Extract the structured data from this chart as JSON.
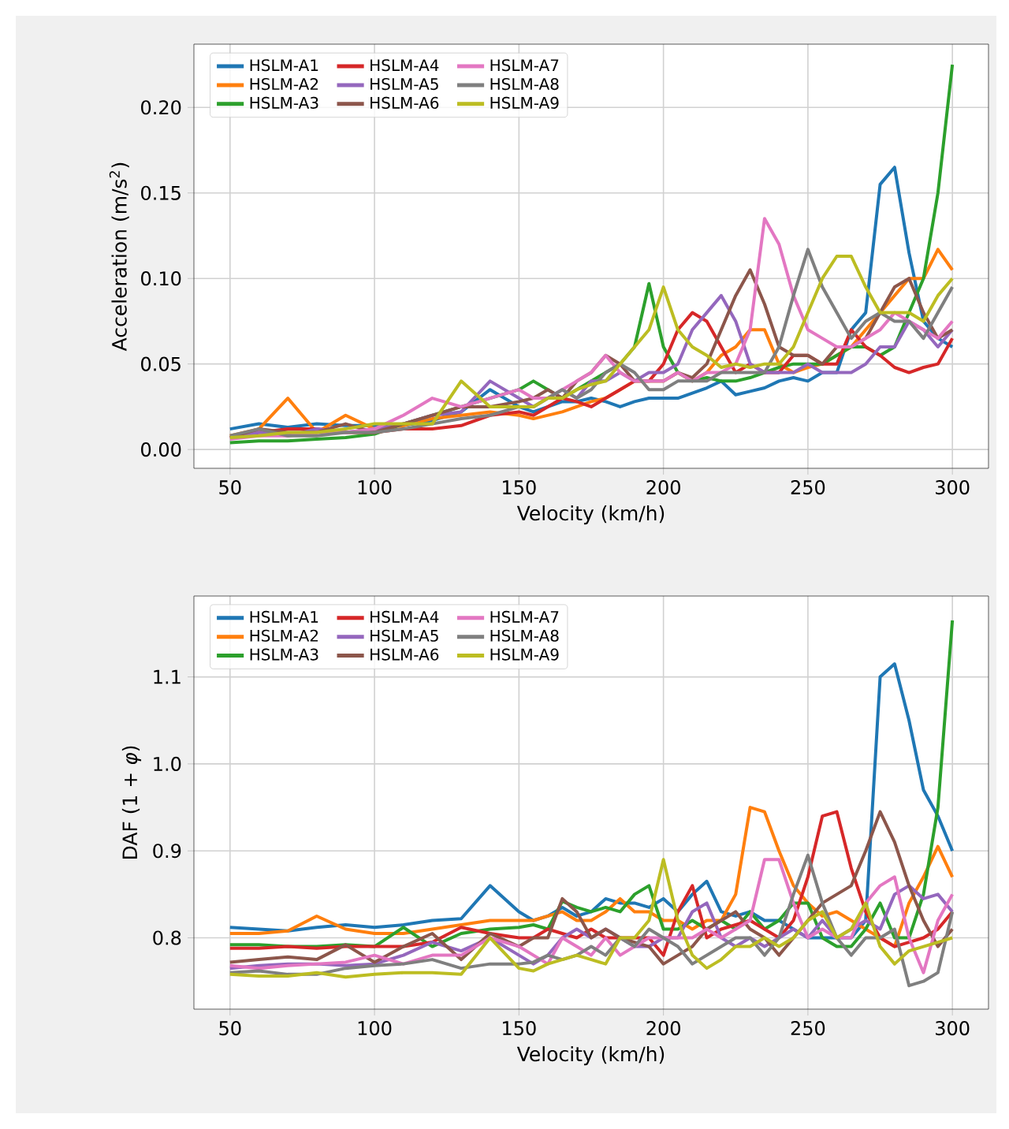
{
  "chart_data": [
    {
      "type": "line",
      "xlabel": "Velocity (km/h)",
      "ylabel": "Acceleration (m/s$^{2}$)",
      "x": [
        50,
        60,
        70,
        80,
        90,
        100,
        110,
        120,
        130,
        140,
        150,
        155,
        160,
        165,
        170,
        175,
        180,
        185,
        190,
        195,
        200,
        205,
        210,
        215,
        220,
        225,
        230,
        235,
        240,
        245,
        250,
        255,
        260,
        265,
        270,
        275,
        280,
        285,
        290,
        295,
        300
      ],
      "xlim": [
        37.5,
        312.5
      ],
      "ylim": [
        -0.011,
        0.237
      ],
      "xticks": [
        50,
        100,
        150,
        200,
        250,
        300
      ],
      "yticks": [
        {
          "value": 0,
          "label": "0.00"
        },
        {
          "value": 0.05,
          "label": "0.05"
        },
        {
          "value": 0.1,
          "label": "0.10"
        },
        {
          "value": 0.15,
          "label": "0.15"
        },
        {
          "value": 0.2,
          "label": "0.20"
        }
      ],
      "grid": true,
      "legend": "top left",
      "marker": "none",
      "line_style": "solid",
      "series": [
        {
          "name": "HSLM-A1",
          "color": "#1f77b4",
          "values": [
            0.012,
            0.015,
            0.013,
            0.015,
            0.014,
            0.014,
            0.014,
            0.017,
            0.022,
            0.035,
            0.025,
            0.022,
            0.025,
            0.028,
            0.028,
            0.03,
            0.028,
            0.025,
            0.028,
            0.03,
            0.03,
            0.03,
            0.033,
            0.036,
            0.04,
            0.032,
            0.034,
            0.036,
            0.04,
            0.042,
            0.04,
            0.045,
            0.045,
            0.07,
            0.08,
            0.155,
            0.165,
            0.115,
            0.075,
            0.065,
            0.06
          ]
        },
        {
          "name": "HSLM-A2",
          "color": "#ff7f0e",
          "values": [
            0.008,
            0.012,
            0.03,
            0.01,
            0.02,
            0.012,
            0.014,
            0.018,
            0.02,
            0.022,
            0.02,
            0.018,
            0.02,
            0.022,
            0.025,
            0.028,
            0.03,
            0.035,
            0.04,
            0.04,
            0.04,
            0.045,
            0.04,
            0.045,
            0.055,
            0.06,
            0.07,
            0.07,
            0.05,
            0.045,
            0.048,
            0.05,
            0.055,
            0.06,
            0.07,
            0.08,
            0.09,
            0.1,
            0.1,
            0.117,
            0.105
          ]
        },
        {
          "name": "HSLM-A3",
          "color": "#2ca02c",
          "values": [
            0.004,
            0.005,
            0.005,
            0.006,
            0.007,
            0.009,
            0.015,
            0.02,
            0.025,
            0.03,
            0.035,
            0.04,
            0.035,
            0.03,
            0.035,
            0.04,
            0.045,
            0.05,
            0.06,
            0.097,
            0.06,
            0.045,
            0.04,
            0.042,
            0.04,
            0.04,
            0.042,
            0.045,
            0.048,
            0.05,
            0.05,
            0.05,
            0.055,
            0.06,
            0.06,
            0.055,
            0.06,
            0.08,
            0.1,
            0.15,
            0.225
          ]
        },
        {
          "name": "HSLM-A4",
          "color": "#d62728",
          "values": [
            0.007,
            0.01,
            0.012,
            0.012,
            0.01,
            0.01,
            0.012,
            0.012,
            0.014,
            0.02,
            0.022,
            0.02,
            0.025,
            0.03,
            0.028,
            0.025,
            0.03,
            0.035,
            0.04,
            0.04,
            0.05,
            0.07,
            0.08,
            0.075,
            0.06,
            0.045,
            0.05,
            0.045,
            0.045,
            0.055,
            0.055,
            0.05,
            0.05,
            0.07,
            0.06,
            0.055,
            0.048,
            0.045,
            0.048,
            0.05,
            0.065
          ]
        },
        {
          "name": "HSLM-A5",
          "color": "#9467bd",
          "values": [
            0.007,
            0.01,
            0.008,
            0.012,
            0.01,
            0.012,
            0.015,
            0.02,
            0.022,
            0.04,
            0.03,
            0.025,
            0.03,
            0.035,
            0.03,
            0.04,
            0.04,
            0.045,
            0.04,
            0.045,
            0.045,
            0.05,
            0.07,
            0.08,
            0.09,
            0.075,
            0.05,
            0.045,
            0.045,
            0.045,
            0.05,
            0.045,
            0.045,
            0.045,
            0.05,
            0.06,
            0.06,
            0.075,
            0.07,
            0.06,
            0.07
          ]
        },
        {
          "name": "HSLM-A6",
          "color": "#8c564b",
          "values": [
            0.007,
            0.012,
            0.01,
            0.01,
            0.015,
            0.01,
            0.015,
            0.02,
            0.025,
            0.025,
            0.028,
            0.03,
            0.035,
            0.03,
            0.04,
            0.045,
            0.055,
            0.05,
            0.04,
            0.04,
            0.04,
            0.045,
            0.042,
            0.05,
            0.07,
            0.09,
            0.105,
            0.085,
            0.06,
            0.055,
            0.055,
            0.05,
            0.06,
            0.06,
            0.065,
            0.08,
            0.095,
            0.1,
            0.08,
            0.065,
            0.07
          ]
        },
        {
          "name": "HSLM-A7",
          "color": "#e377c2",
          "values": [
            0.006,
            0.008,
            0.008,
            0.01,
            0.01,
            0.012,
            0.02,
            0.03,
            0.025,
            0.03,
            0.035,
            0.03,
            0.03,
            0.035,
            0.04,
            0.045,
            0.055,
            0.045,
            0.04,
            0.04,
            0.04,
            0.045,
            0.04,
            0.045,
            0.045,
            0.05,
            0.07,
            0.135,
            0.12,
            0.09,
            0.07,
            0.065,
            0.06,
            0.06,
            0.065,
            0.07,
            0.08,
            0.075,
            0.07,
            0.065,
            0.075
          ]
        },
        {
          "name": "HSLM-A8",
          "color": "#7f7f7f",
          "values": [
            0.008,
            0.012,
            0.008,
            0.008,
            0.01,
            0.01,
            0.012,
            0.015,
            0.018,
            0.02,
            0.025,
            0.025,
            0.03,
            0.035,
            0.03,
            0.035,
            0.045,
            0.05,
            0.045,
            0.035,
            0.035,
            0.04,
            0.04,
            0.04,
            0.045,
            0.045,
            0.045,
            0.045,
            0.06,
            0.09,
            0.117,
            0.095,
            0.08,
            0.065,
            0.075,
            0.08,
            0.075,
            0.075,
            0.065,
            0.08,
            0.095
          ]
        },
        {
          "name": "HSLM-A9",
          "color": "#bcbd22",
          "values": [
            0.007,
            0.008,
            0.01,
            0.01,
            0.012,
            0.015,
            0.015,
            0.015,
            0.04,
            0.025,
            0.025,
            0.025,
            0.03,
            0.03,
            0.035,
            0.038,
            0.04,
            0.05,
            0.06,
            0.07,
            0.095,
            0.07,
            0.06,
            0.055,
            0.048,
            0.05,
            0.048,
            0.05,
            0.05,
            0.06,
            0.08,
            0.1,
            0.113,
            0.113,
            0.095,
            0.08,
            0.08,
            0.08,
            0.075,
            0.09,
            0.1
          ]
        }
      ]
    },
    {
      "type": "line",
      "xlabel": "Velocity (km/h)",
      "ylabel": "DAF (1 + *φ*)",
      "x": [
        50,
        60,
        70,
        80,
        90,
        100,
        110,
        120,
        130,
        140,
        150,
        155,
        160,
        165,
        170,
        175,
        180,
        185,
        190,
        195,
        200,
        205,
        210,
        215,
        220,
        225,
        230,
        235,
        240,
        245,
        250,
        255,
        260,
        265,
        270,
        275,
        280,
        285,
        290,
        295,
        300
      ],
      "xlim": [
        37.5,
        312.5
      ],
      "ylim": [
        0.718,
        1.193
      ],
      "xticks": [
        50,
        100,
        150,
        200,
        250,
        300
      ],
      "yticks": [
        {
          "value": 0.8,
          "label": "0.8"
        },
        {
          "value": 0.9,
          "label": "0.9"
        },
        {
          "value": 1.0,
          "label": "1.0"
        },
        {
          "value": 1.1,
          "label": "1.1"
        }
      ],
      "grid": true,
      "legend": "top left",
      "marker": "none",
      "line_style": "solid",
      "series": [
        {
          "name": "HSLM-A1",
          "color": "#1f77b4",
          "values": [
            0.812,
            0.81,
            0.808,
            0.812,
            0.815,
            0.812,
            0.815,
            0.82,
            0.822,
            0.86,
            0.83,
            0.82,
            0.825,
            0.835,
            0.825,
            0.83,
            0.845,
            0.84,
            0.84,
            0.835,
            0.845,
            0.83,
            0.85,
            0.865,
            0.83,
            0.825,
            0.83,
            0.82,
            0.82,
            0.81,
            0.8,
            0.8,
            0.8,
            0.8,
            0.82,
            1.1,
            1.115,
            1.05,
            0.97,
            0.94,
            0.9
          ]
        },
        {
          "name": "HSLM-A2",
          "color": "#ff7f0e",
          "values": [
            0.805,
            0.805,
            0.808,
            0.825,
            0.81,
            0.805,
            0.805,
            0.81,
            0.815,
            0.82,
            0.82,
            0.82,
            0.825,
            0.83,
            0.82,
            0.82,
            0.83,
            0.845,
            0.83,
            0.83,
            0.82,
            0.82,
            0.81,
            0.82,
            0.82,
            0.85,
            0.95,
            0.945,
            0.9,
            0.86,
            0.84,
            0.825,
            0.83,
            0.82,
            0.81,
            0.8,
            0.79,
            0.84,
            0.87,
            0.905,
            0.87
          ]
        },
        {
          "name": "HSLM-A3",
          "color": "#2ca02c",
          "values": [
            0.792,
            0.792,
            0.79,
            0.79,
            0.792,
            0.79,
            0.812,
            0.79,
            0.805,
            0.81,
            0.812,
            0.815,
            0.81,
            0.842,
            0.835,
            0.83,
            0.835,
            0.83,
            0.85,
            0.86,
            0.81,
            0.81,
            0.82,
            0.81,
            0.82,
            0.81,
            0.83,
            0.81,
            0.82,
            0.84,
            0.84,
            0.8,
            0.79,
            0.79,
            0.81,
            0.84,
            0.8,
            0.8,
            0.85,
            0.95,
            1.165
          ]
        },
        {
          "name": "HSLM-A4",
          "color": "#d62728",
          "values": [
            0.788,
            0.788,
            0.79,
            0.788,
            0.79,
            0.79,
            0.79,
            0.795,
            0.812,
            0.805,
            0.8,
            0.8,
            0.81,
            0.805,
            0.8,
            0.81,
            0.8,
            0.8,
            0.8,
            0.8,
            0.78,
            0.83,
            0.86,
            0.8,
            0.81,
            0.815,
            0.82,
            0.81,
            0.8,
            0.82,
            0.87,
            0.94,
            0.945,
            0.88,
            0.83,
            0.8,
            0.79,
            0.795,
            0.8,
            0.81,
            0.83
          ]
        },
        {
          "name": "HSLM-A5",
          "color": "#9467bd",
          "values": [
            0.765,
            0.768,
            0.77,
            0.77,
            0.768,
            0.77,
            0.78,
            0.795,
            0.785,
            0.8,
            0.78,
            0.77,
            0.78,
            0.8,
            0.81,
            0.8,
            0.81,
            0.8,
            0.79,
            0.79,
            0.8,
            0.8,
            0.83,
            0.84,
            0.8,
            0.79,
            0.8,
            0.79,
            0.8,
            0.81,
            0.8,
            0.82,
            0.8,
            0.81,
            0.82,
            0.81,
            0.85,
            0.86,
            0.845,
            0.85,
            0.83
          ]
        },
        {
          "name": "HSLM-A6",
          "color": "#8c564b",
          "values": [
            0.772,
            0.775,
            0.778,
            0.775,
            0.792,
            0.772,
            0.79,
            0.805,
            0.775,
            0.805,
            0.79,
            0.8,
            0.8,
            0.845,
            0.83,
            0.8,
            0.81,
            0.8,
            0.795,
            0.79,
            0.77,
            0.78,
            0.79,
            0.81,
            0.82,
            0.83,
            0.81,
            0.8,
            0.78,
            0.8,
            0.82,
            0.84,
            0.85,
            0.86,
            0.9,
            0.945,
            0.91,
            0.86,
            0.82,
            0.79,
            0.81
          ]
        },
        {
          "name": "HSLM-A7",
          "color": "#e377c2",
          "values": [
            0.768,
            0.765,
            0.768,
            0.77,
            0.772,
            0.78,
            0.77,
            0.78,
            0.78,
            0.8,
            0.79,
            0.78,
            0.77,
            0.8,
            0.79,
            0.78,
            0.8,
            0.78,
            0.79,
            0.8,
            0.8,
            0.8,
            0.8,
            0.81,
            0.8,
            0.81,
            0.82,
            0.89,
            0.89,
            0.84,
            0.8,
            0.81,
            0.8,
            0.8,
            0.84,
            0.86,
            0.87,
            0.8,
            0.76,
            0.82,
            0.85
          ]
        },
        {
          "name": "HSLM-A8",
          "color": "#7f7f7f",
          "values": [
            0.76,
            0.762,
            0.758,
            0.758,
            0.765,
            0.768,
            0.77,
            0.775,
            0.765,
            0.77,
            0.77,
            0.772,
            0.78,
            0.775,
            0.78,
            0.79,
            0.78,
            0.8,
            0.79,
            0.81,
            0.8,
            0.79,
            0.77,
            0.78,
            0.79,
            0.8,
            0.8,
            0.78,
            0.8,
            0.85,
            0.895,
            0.84,
            0.8,
            0.78,
            0.8,
            0.8,
            0.81,
            0.745,
            0.75,
            0.76,
            0.83
          ]
        },
        {
          "name": "HSLM-A9",
          "color": "#bcbd22",
          "values": [
            0.758,
            0.756,
            0.756,
            0.76,
            0.755,
            0.758,
            0.76,
            0.76,
            0.758,
            0.8,
            0.765,
            0.762,
            0.77,
            0.775,
            0.78,
            0.775,
            0.77,
            0.8,
            0.8,
            0.82,
            0.89,
            0.82,
            0.78,
            0.765,
            0.775,
            0.79,
            0.79,
            0.8,
            0.79,
            0.8,
            0.82,
            0.83,
            0.8,
            0.81,
            0.84,
            0.79,
            0.77,
            0.785,
            0.79,
            0.795,
            0.8
          ]
        }
      ]
    }
  ]
}
